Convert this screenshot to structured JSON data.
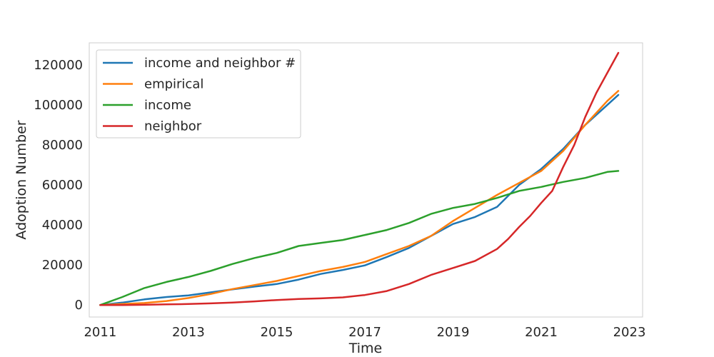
{
  "chart_data": {
    "type": "line",
    "title": "",
    "xlabel": "Time",
    "ylabel": "Adoption Number",
    "xlim": [
      2010.75,
      2023.3
    ],
    "ylim": [
      -6000,
      131000
    ],
    "xticks": [
      2011,
      2013,
      2015,
      2017,
      2019,
      2021,
      2023
    ],
    "xtick_labels": [
      "2011",
      "2013",
      "2015",
      "2017",
      "2019",
      "2021",
      "2023"
    ],
    "yticks": [
      0,
      20000,
      40000,
      60000,
      80000,
      100000,
      120000
    ],
    "ytick_labels": [
      "0",
      "20000",
      "40000",
      "60000",
      "80000",
      "100000",
      "120000"
    ],
    "grid": false,
    "legend_position": "upper-left",
    "series": [
      {
        "name": "income and neighbor #",
        "color": "#1f77b4",
        "x": [
          2011.0,
          2011.5,
          2012.0,
          2012.5,
          2013.0,
          2013.5,
          2014.0,
          2014.5,
          2015.0,
          2015.5,
          2016.0,
          2016.5,
          2017.0,
          2017.5,
          2018.0,
          2018.5,
          2019.0,
          2019.5,
          2020.0,
          2020.5,
          2021.0,
          2021.5,
          2022.0,
          2022.5,
          2022.75
        ],
        "y": [
          0,
          1200,
          2800,
          4000,
          4800,
          6300,
          7800,
          9200,
          10500,
          12700,
          15500,
          17500,
          19800,
          24000,
          28500,
          34500,
          40500,
          44000,
          49000,
          60000,
          68000,
          78000,
          90000,
          100000,
          105000
        ]
      },
      {
        "name": "empirical",
        "color": "#ff7f0e",
        "x": [
          2011.0,
          2011.5,
          2012.0,
          2012.5,
          2013.0,
          2013.5,
          2014.0,
          2014.5,
          2015.0,
          2015.5,
          2016.0,
          2016.5,
          2017.0,
          2017.5,
          2018.0,
          2018.5,
          2019.0,
          2019.5,
          2020.0,
          2020.5,
          2021.0,
          2021.5,
          2022.0,
          2022.5,
          2022.75
        ],
        "y": [
          0,
          500,
          1000,
          2000,
          3500,
          5500,
          8000,
          10000,
          12000,
          14500,
          17000,
          19000,
          21500,
          25500,
          29500,
          34500,
          42000,
          48500,
          55000,
          61000,
          67000,
          77000,
          90000,
          102000,
          107000
        ]
      },
      {
        "name": "income",
        "color": "#2ca02c",
        "x": [
          2011.0,
          2011.5,
          2012.0,
          2012.5,
          2013.0,
          2013.5,
          2014.0,
          2014.5,
          2015.0,
          2015.5,
          2016.0,
          2016.5,
          2017.0,
          2017.5,
          2018.0,
          2018.5,
          2019.0,
          2019.5,
          2020.0,
          2020.5,
          2021.0,
          2021.5,
          2022.0,
          2022.5,
          2022.75
        ],
        "y": [
          0,
          4000,
          8500,
          11500,
          14000,
          17000,
          20500,
          23500,
          26000,
          29500,
          31000,
          32500,
          35000,
          37500,
          41000,
          45500,
          48500,
          50500,
          53500,
          57000,
          59000,
          61500,
          63500,
          66500,
          67000
        ]
      },
      {
        "name": "neighbor",
        "color": "#d62728",
        "x": [
          2011.0,
          2011.5,
          2012.0,
          2012.5,
          2013.0,
          2013.5,
          2014.0,
          2014.5,
          2015.0,
          2015.5,
          2016.0,
          2016.5,
          2017.0,
          2017.5,
          2018.0,
          2018.5,
          2019.0,
          2019.5,
          2020.0,
          2020.25,
          2020.5,
          2020.75,
          2021.0,
          2021.25,
          2021.5,
          2021.75,
          2022.0,
          2022.25,
          2022.5,
          2022.75
        ],
        "y": [
          0,
          0,
          100,
          300,
          500,
          800,
          1200,
          1800,
          2500,
          3000,
          3300,
          3800,
          5000,
          7000,
          10500,
          15000,
          18500,
          22000,
          28000,
          33000,
          39000,
          44500,
          51000,
          57000,
          69000,
          80000,
          94000,
          106000,
          116000,
          126000
        ]
      }
    ]
  }
}
